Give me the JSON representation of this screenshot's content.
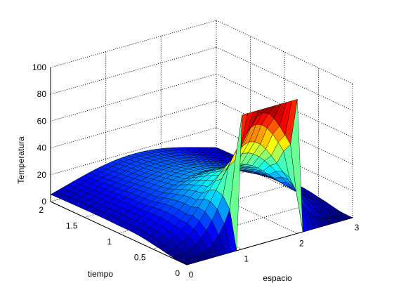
{
  "chart_data": {
    "type": "surface",
    "zlabel": "Temperatura",
    "xlabel": "espacio",
    "ylabel": "tiempo",
    "xlim": [
      0,
      3
    ],
    "ylim": [
      0,
      2
    ],
    "zlim": [
      0,
      100
    ],
    "z_ticks": [
      "0",
      "20",
      "40",
      "60",
      "80",
      "100"
    ],
    "x_ticks": [
      "0",
      "1",
      "2",
      "3"
    ],
    "y_ticks": [
      "0",
      "0.5",
      "1",
      "1.5",
      "2"
    ],
    "grid": true,
    "colormap": "jet",
    "initial_condition": {
      "x_from": 1.0,
      "x_to": 2.0,
      "value": 100
    },
    "decay_series": [
      {
        "t": 0.0,
        "peak": 100
      },
      {
        "t": 0.5,
        "peak": 45
      },
      {
        "t": 1.0,
        "peak": 28
      },
      {
        "t": 1.5,
        "peak": 22
      },
      {
        "t": 2.0,
        "peak": 18
      }
    ]
  }
}
